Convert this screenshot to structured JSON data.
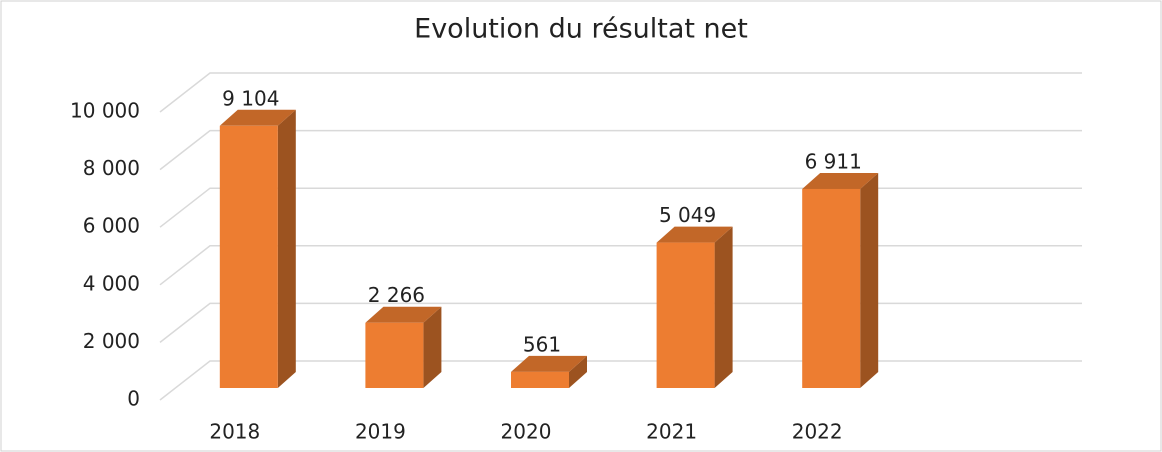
{
  "chart_data": {
    "type": "bar",
    "title": "Evolution du résultat net",
    "categories": [
      "2018",
      "2019",
      "2020",
      "2021",
      "2022"
    ],
    "values": [
      9104,
      2266,
      561,
      5049,
      6911
    ],
    "value_labels": [
      "9 104",
      "2 266",
      "561",
      "5 049",
      "6 911"
    ],
    "color": "#ed7d31",
    "ylim": [
      0,
      10000
    ],
    "yticks": [
      0,
      {
        "value": 2000,
        "label": "2 000"
      },
      {
        "value": 4000,
        "label": "4 000"
      },
      {
        "value": 6000,
        "label": "6 000"
      },
      {
        "value": 8000,
        "label": "8 000"
      },
      {
        "value": 10000,
        "label": "10 000"
      }
    ],
    "grid": true
  }
}
